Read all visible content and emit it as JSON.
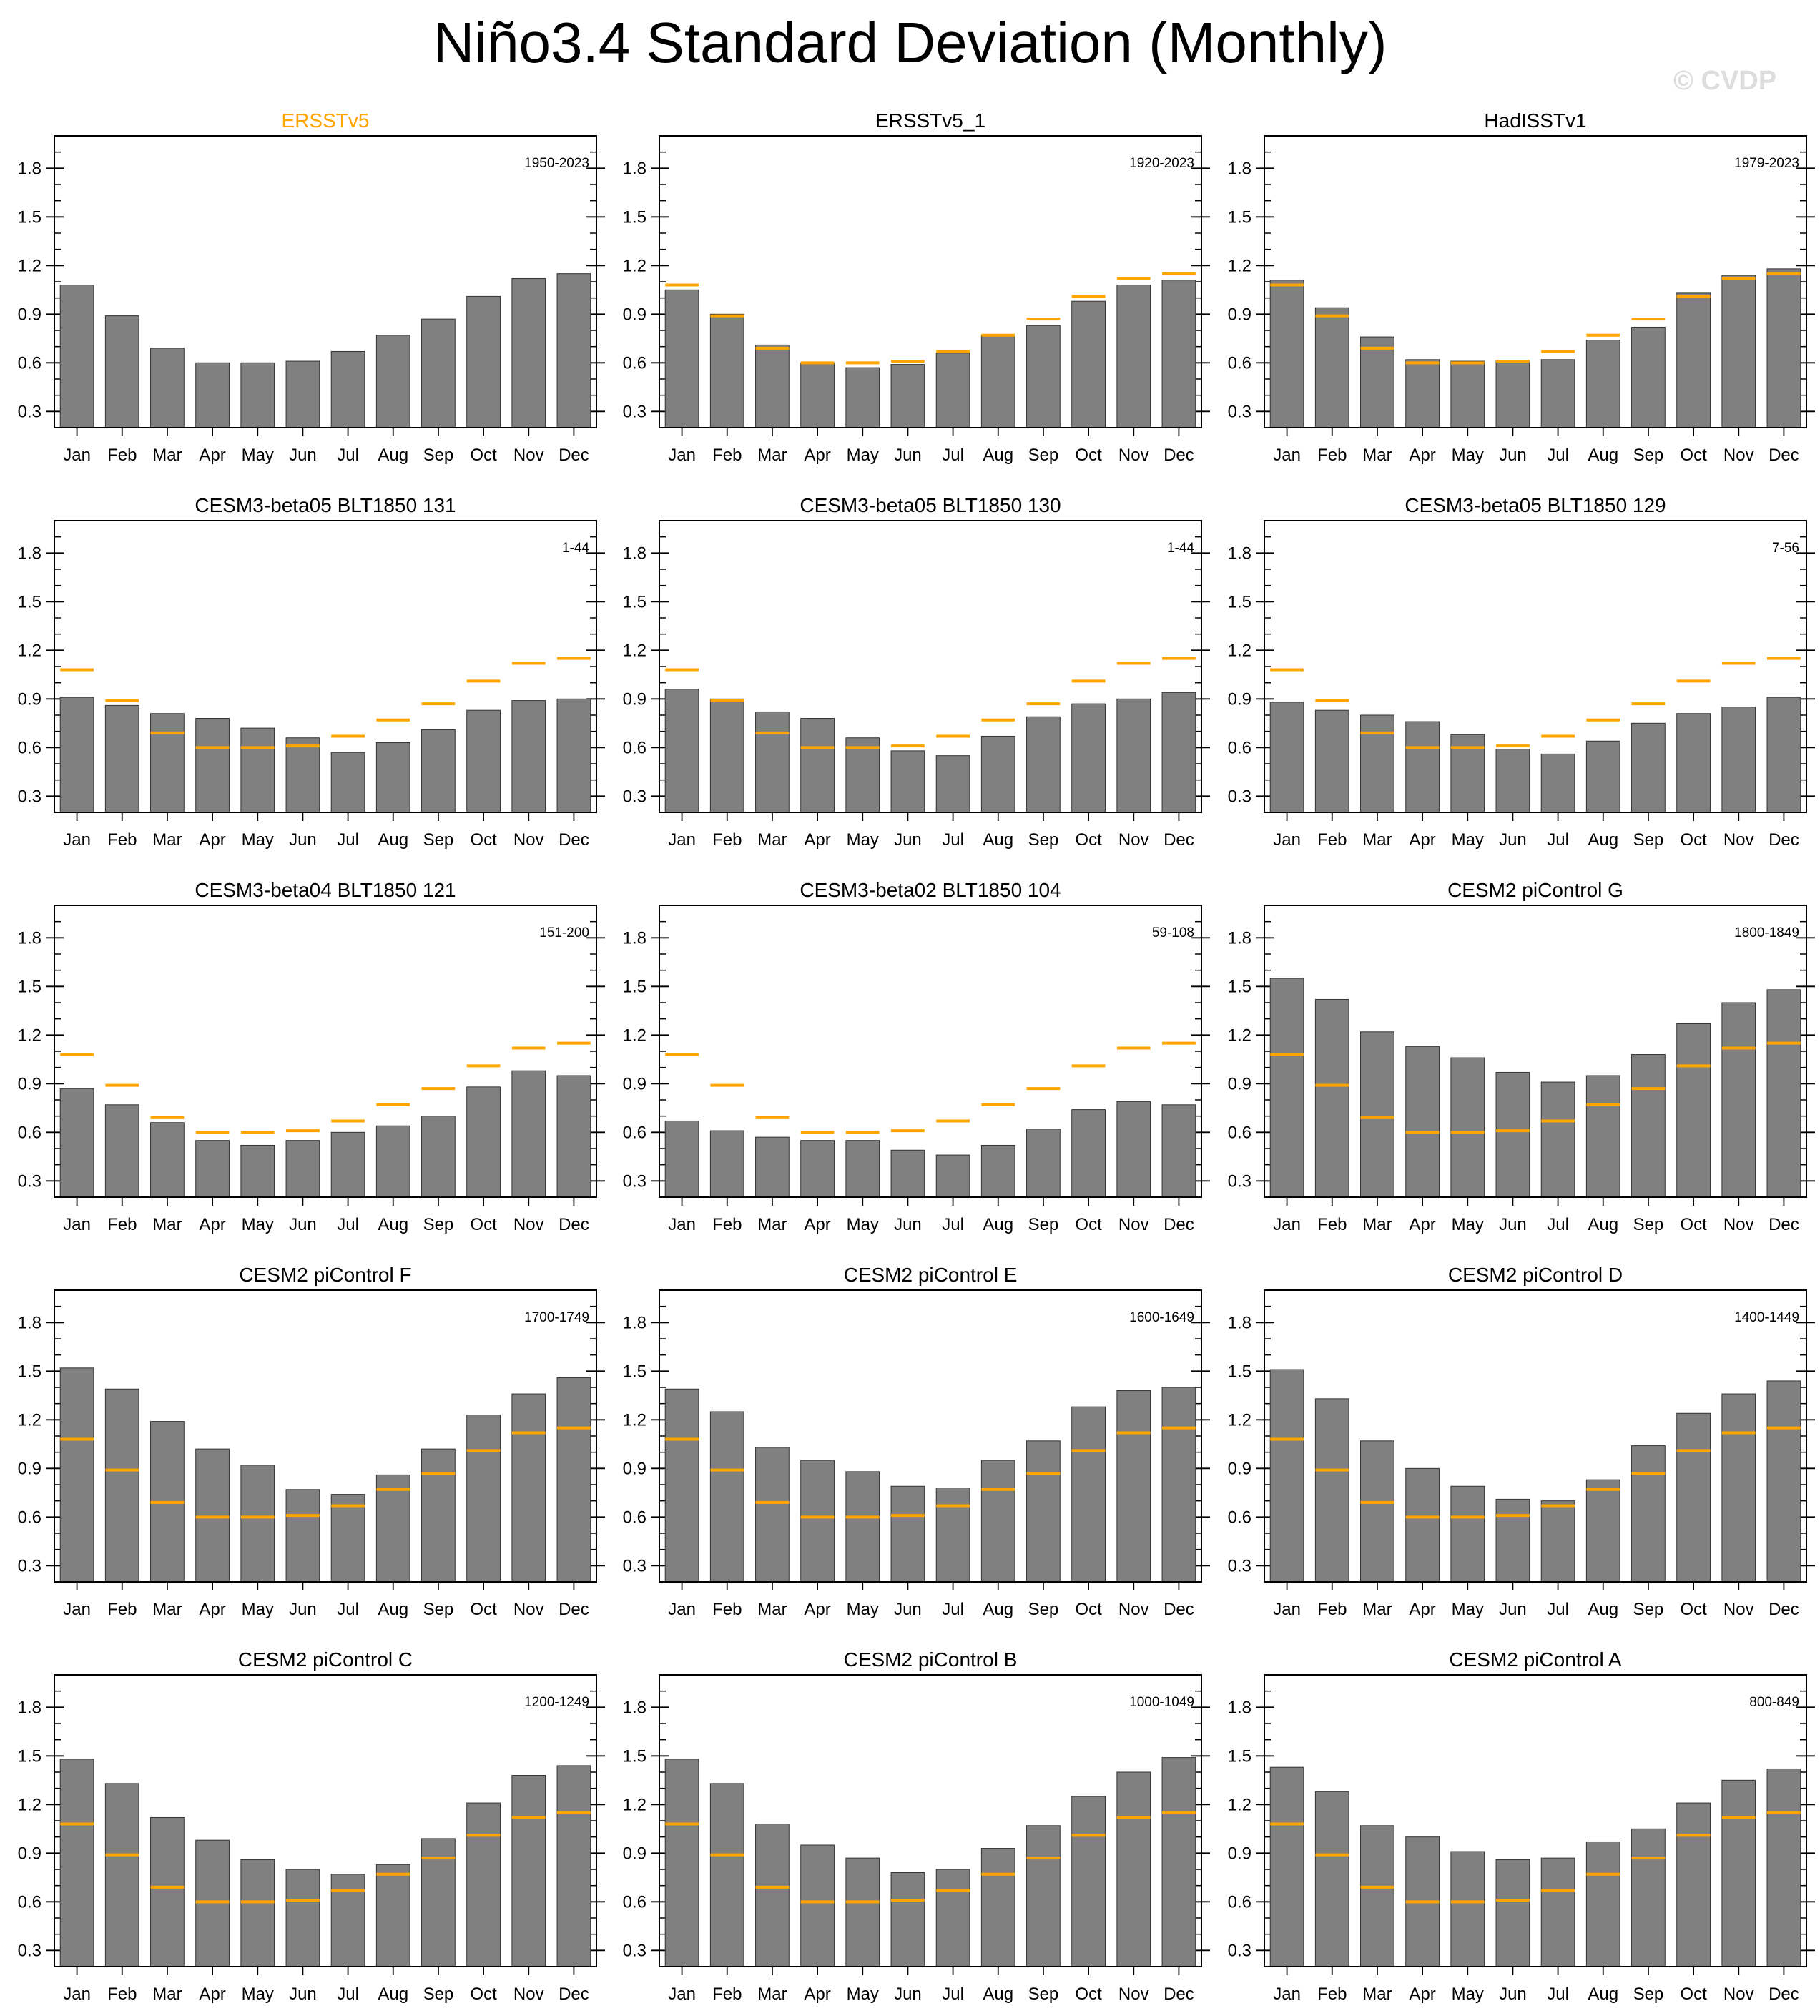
{
  "title": "Niño3.4 Standard Deviation (Monthly)",
  "watermark": "© CVDP",
  "colors": {
    "bar": "#808080",
    "bar_edge": "#333333",
    "reference": "#ffa500",
    "axis": "#000000",
    "highlight_title": "#ffa500"
  },
  "chart_data": {
    "type": "bar",
    "layout": "grid 5 rows x 3 columns",
    "categories": [
      "Jan",
      "Feb",
      "Mar",
      "Apr",
      "May",
      "Jun",
      "Jul",
      "Aug",
      "Sep",
      "Oct",
      "Nov",
      "Dec"
    ],
    "y_ticks": [
      "0.3",
      "0.6",
      "0.9",
      "1.2",
      "1.5",
      "1.8"
    ],
    "ylim": [
      0.2,
      2.0
    ],
    "reference_series": {
      "name": "ERSSTv5",
      "values": [
        1.08,
        0.89,
        0.69,
        0.6,
        0.6,
        0.61,
        0.67,
        0.77,
        0.87,
        1.01,
        1.12,
        1.15
      ]
    },
    "panels": [
      {
        "title": "ERSSTv5",
        "period": "1950-2023",
        "highlight": true,
        "show_reference": false,
        "values": [
          1.08,
          0.89,
          0.69,
          0.6,
          0.6,
          0.61,
          0.67,
          0.77,
          0.87,
          1.01,
          1.12,
          1.15
        ]
      },
      {
        "title": "ERSSTv5_1",
        "period": "1920-2023",
        "highlight": false,
        "show_reference": true,
        "values": [
          1.05,
          0.9,
          0.71,
          0.6,
          0.57,
          0.59,
          0.66,
          0.77,
          0.83,
          0.98,
          1.08,
          1.11
        ]
      },
      {
        "title": "HadISSTv1",
        "period": "1979-2023",
        "highlight": false,
        "show_reference": true,
        "values": [
          1.11,
          0.94,
          0.76,
          0.62,
          0.61,
          0.61,
          0.62,
          0.74,
          0.82,
          1.03,
          1.14,
          1.18
        ]
      },
      {
        "title": "CESM3-beta05 BLT1850 131",
        "period": "1-44",
        "highlight": false,
        "show_reference": true,
        "values": [
          0.91,
          0.86,
          0.81,
          0.78,
          0.72,
          0.66,
          0.57,
          0.63,
          0.71,
          0.83,
          0.89,
          0.9
        ]
      },
      {
        "title": "CESM3-beta05 BLT1850 130",
        "period": "1-44",
        "highlight": false,
        "show_reference": true,
        "values": [
          0.96,
          0.9,
          0.82,
          0.78,
          0.66,
          0.58,
          0.55,
          0.67,
          0.79,
          0.87,
          0.9,
          0.94
        ]
      },
      {
        "title": "CESM3-beta05 BLT1850 129",
        "period": "7-56",
        "highlight": false,
        "show_reference": true,
        "values": [
          0.88,
          0.83,
          0.8,
          0.76,
          0.68,
          0.59,
          0.56,
          0.64,
          0.75,
          0.81,
          0.85,
          0.91
        ]
      },
      {
        "title": "CESM3-beta04 BLT1850 121",
        "period": "151-200",
        "highlight": false,
        "show_reference": true,
        "values": [
          0.87,
          0.77,
          0.66,
          0.55,
          0.52,
          0.55,
          0.6,
          0.64,
          0.7,
          0.88,
          0.98,
          0.95
        ]
      },
      {
        "title": "CESM3-beta02 BLT1850 104",
        "period": "59-108",
        "highlight": false,
        "show_reference": true,
        "values": [
          0.67,
          0.61,
          0.57,
          0.55,
          0.55,
          0.49,
          0.46,
          0.52,
          0.62,
          0.74,
          0.79,
          0.77
        ]
      },
      {
        "title": "CESM2 piControl G",
        "period": "1800-1849",
        "highlight": false,
        "show_reference": true,
        "values": [
          1.55,
          1.42,
          1.22,
          1.13,
          1.06,
          0.97,
          0.91,
          0.95,
          1.08,
          1.27,
          1.4,
          1.48
        ]
      },
      {
        "title": "CESM2 piControl F",
        "period": "1700-1749",
        "highlight": false,
        "show_reference": true,
        "values": [
          1.52,
          1.39,
          1.19,
          1.02,
          0.92,
          0.77,
          0.74,
          0.86,
          1.02,
          1.23,
          1.36,
          1.46
        ]
      },
      {
        "title": "CESM2 piControl E",
        "period": "1600-1649",
        "highlight": false,
        "show_reference": true,
        "values": [
          1.39,
          1.25,
          1.03,
          0.95,
          0.88,
          0.79,
          0.78,
          0.95,
          1.07,
          1.28,
          1.38,
          1.4
        ]
      },
      {
        "title": "CESM2 piControl D",
        "period": "1400-1449",
        "highlight": false,
        "show_reference": true,
        "values": [
          1.51,
          1.33,
          1.07,
          0.9,
          0.79,
          0.71,
          0.7,
          0.83,
          1.04,
          1.24,
          1.36,
          1.44
        ]
      },
      {
        "title": "CESM2 piControl C",
        "period": "1200-1249",
        "highlight": false,
        "show_reference": true,
        "values": [
          1.48,
          1.33,
          1.12,
          0.98,
          0.86,
          0.8,
          0.77,
          0.83,
          0.99,
          1.21,
          1.38,
          1.44
        ]
      },
      {
        "title": "CESM2 piControl B",
        "period": "1000-1049",
        "highlight": false,
        "show_reference": true,
        "values": [
          1.48,
          1.33,
          1.08,
          0.95,
          0.87,
          0.78,
          0.8,
          0.93,
          1.07,
          1.25,
          1.4,
          1.49
        ]
      },
      {
        "title": "CESM2 piControl A",
        "period": "800-849",
        "highlight": false,
        "show_reference": true,
        "values": [
          1.43,
          1.28,
          1.07,
          1.0,
          0.91,
          0.86,
          0.87,
          0.97,
          1.05,
          1.21,
          1.35,
          1.42
        ]
      }
    ]
  }
}
